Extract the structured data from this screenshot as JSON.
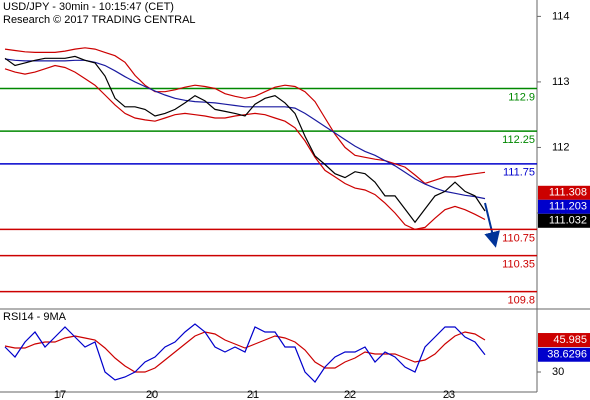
{
  "chart_data": [
    {
      "type": "line",
      "title": "USD/JPY - 30min - 10:15:47 (CET)",
      "subtitle": "Research © 2017 TRADING CENTRAL",
      "x": [
        0,
        1,
        2,
        3,
        4,
        5,
        6,
        7,
        8,
        9,
        10,
        11,
        12,
        13,
        14,
        15,
        16,
        17,
        18,
        19,
        20,
        21,
        22,
        23,
        24,
        25,
        26,
        27,
        28,
        29,
        30,
        31,
        32,
        33,
        34,
        35,
        36,
        37,
        38,
        39,
        40,
        41,
        42,
        43,
        44,
        45,
        46,
        47,
        48
      ],
      "xlim": [
        -0.5,
        53.2
      ],
      "ylim": [
        109.55,
        114.25
      ],
      "yticks": [
        111,
        112,
        113,
        114
      ],
      "series": [
        {
          "color": "#cc0000",
          "values": [
            113.5,
            113.48,
            113.46,
            113.45,
            113.45,
            113.45,
            113.47,
            113.5,
            113.52,
            113.5,
            113.45,
            113.4,
            113.3,
            113.1,
            112.95,
            112.85,
            112.85,
            112.88,
            112.92,
            112.95,
            112.93,
            112.9,
            112.82,
            112.78,
            112.75,
            112.78,
            112.85,
            112.92,
            112.95,
            112.93,
            112.85,
            112.7,
            112.45,
            112.2,
            112.0,
            111.88,
            111.85,
            111.82,
            111.8,
            111.75,
            111.7,
            111.58,
            111.45,
            111.5,
            111.55,
            111.55,
            111.58,
            111.6,
            111.62
          ]
        },
        {
          "color": "#cc0000",
          "values": [
            113.2,
            113.15,
            113.12,
            113.15,
            113.2,
            113.25,
            113.22,
            113.15,
            113.05,
            112.95,
            112.8,
            112.65,
            112.52,
            112.45,
            112.42,
            112.4,
            112.45,
            112.5,
            112.52,
            112.5,
            112.48,
            112.45,
            112.45,
            112.48,
            112.5,
            112.52,
            112.5,
            112.45,
            112.4,
            112.3,
            112.1,
            111.85,
            111.65,
            111.55,
            111.45,
            111.38,
            111.35,
            111.28,
            111.15,
            111.0,
            110.82,
            110.75,
            110.78,
            110.92,
            111.05,
            111.1,
            111.05,
            110.98,
            110.9
          ]
        },
        {
          "color": "#1a1aa0",
          "values": [
            113.35,
            113.33,
            113.32,
            113.32,
            113.32,
            113.32,
            113.32,
            113.33,
            113.33,
            113.3,
            113.25,
            113.17,
            113.08,
            113.0,
            112.93,
            112.86,
            112.8,
            112.75,
            112.72,
            112.7,
            112.69,
            112.68,
            112.66,
            112.64,
            112.62,
            112.62,
            112.62,
            112.62,
            112.62,
            112.6,
            112.52,
            112.42,
            112.32,
            112.22,
            112.12,
            112.02,
            111.94,
            111.88,
            111.8,
            111.72,
            111.62,
            111.52,
            111.44,
            111.38,
            111.33,
            111.3,
            111.27,
            111.25,
            111.22
          ]
        },
        {
          "color": "#000000",
          "values": [
            113.36,
            113.25,
            113.29,
            113.33,
            113.36,
            113.36,
            113.36,
            113.39,
            113.33,
            113.29,
            113.09,
            112.75,
            112.62,
            112.62,
            112.58,
            112.48,
            112.52,
            112.58,
            112.68,
            112.79,
            112.71,
            112.58,
            112.55,
            112.52,
            112.48,
            112.66,
            112.75,
            112.79,
            112.68,
            112.52,
            112.17,
            111.87,
            111.74,
            111.6,
            111.54,
            111.63,
            111.6,
            111.47,
            111.26,
            111.26,
            111.06,
            110.86,
            111.06,
            111.26,
            111.33,
            111.47,
            111.33,
            111.26,
            111.03
          ]
        }
      ],
      "levels": [
        {
          "value": 112.9,
          "color": "#008800"
        },
        {
          "value": 112.25,
          "color": "#008800"
        },
        {
          "value": 111.75,
          "color": "#0000cc"
        },
        {
          "value": 110.75,
          "color": "#cc0000"
        },
        {
          "value": 110.35,
          "color": "#cc0000"
        },
        {
          "value": 109.8,
          "color": "#cc0000"
        }
      ],
      "badges": [
        {
          "value": 111.308,
          "color": "#cc0000"
        },
        {
          "value": 111.203,
          "color": "#0000cc"
        },
        {
          "value": 111.032,
          "color": "#000000"
        }
      ]
    },
    {
      "type": "line",
      "title": "RSI14 - 9MA",
      "x": [
        0,
        1,
        2,
        3,
        4,
        5,
        6,
        7,
        8,
        9,
        10,
        11,
        12,
        13,
        14,
        15,
        16,
        17,
        18,
        19,
        20,
        21,
        22,
        23,
        24,
        25,
        26,
        27,
        28,
        29,
        30,
        31,
        32,
        33,
        34,
        35,
        36,
        37,
        38,
        39,
        40,
        41,
        42,
        43,
        44,
        45,
        46,
        47,
        48
      ],
      "xlim": [
        -0.5,
        53.2
      ],
      "xticks": [
        {
          "value": 5.5,
          "label": "17"
        },
        {
          "value": 14.7,
          "label": "20"
        },
        {
          "value": 24.8,
          "label": "21"
        },
        {
          "value": 34.5,
          "label": "22"
        },
        {
          "value": 44.4,
          "label": "23"
        }
      ],
      "ylim": [
        20,
        61
      ],
      "yticks": [
        30
      ],
      "series": [
        {
          "color": "#cc0000",
          "values": [
            43,
            42,
            42,
            44,
            45,
            45,
            47,
            48,
            47,
            46,
            42,
            37,
            33,
            30,
            30,
            32,
            36,
            40,
            44,
            48,
            50,
            49,
            46,
            44,
            42,
            44,
            46,
            48,
            47,
            45,
            41,
            35,
            32,
            32,
            35,
            37,
            40,
            39,
            39,
            39,
            37,
            35,
            36,
            39,
            44,
            48,
            50,
            49,
            45.985
          ]
        },
        {
          "color": "#0000cc",
          "values": [
            42.5,
            37.5,
            45,
            50,
            42.5,
            47.5,
            52.5,
            47.5,
            42.5,
            45,
            30,
            26,
            27.5,
            30,
            35,
            37.5,
            42.5,
            45,
            50,
            54,
            50,
            42.5,
            40,
            42.5,
            40,
            52.5,
            50,
            50,
            42.5,
            42.5,
            30,
            25,
            32.5,
            37.5,
            40,
            40,
            42.5,
            35,
            40,
            37.5,
            32.5,
            30,
            42.5,
            47.5,
            52.5,
            52.5,
            47.5,
            45,
            38.63
          ]
        }
      ],
      "badges": [
        {
          "value": 45.985,
          "color": "#cc0000"
        },
        {
          "value": 38.6296,
          "color": "#0000cc"
        }
      ]
    }
  ]
}
